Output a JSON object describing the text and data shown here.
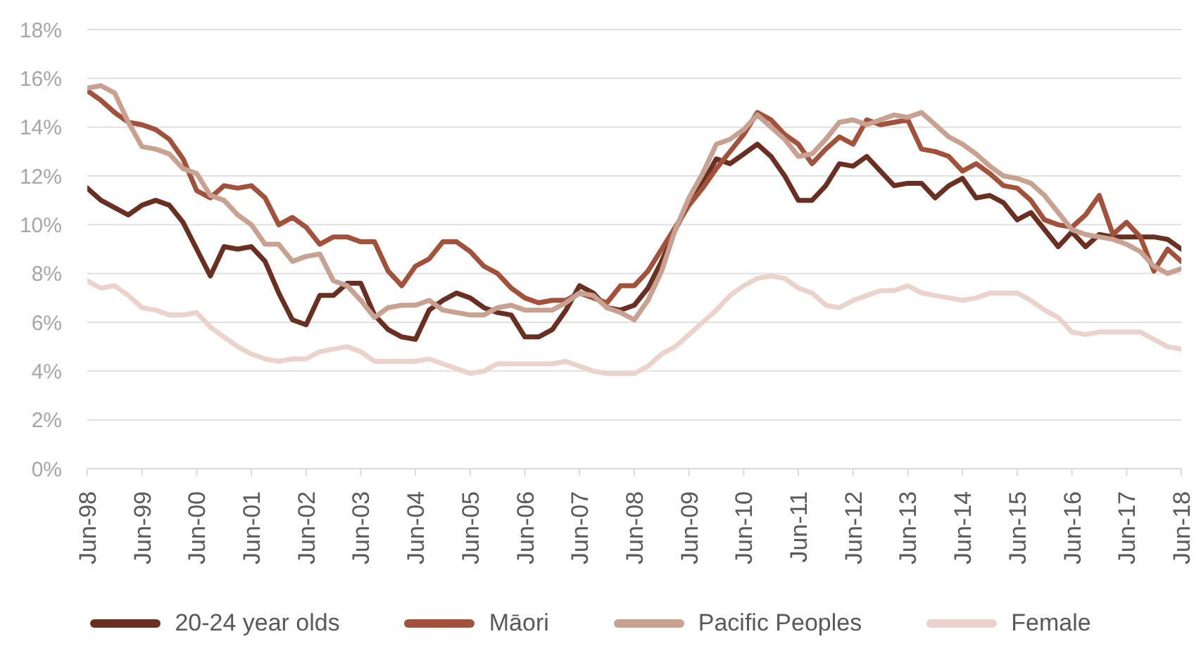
{
  "chart_data": {
    "type": "line",
    "categories": [
      "Jun-98",
      null,
      null,
      null,
      "Jun-99",
      null,
      null,
      null,
      "Jun-00",
      null,
      null,
      null,
      "Jun-01",
      null,
      null,
      null,
      "Jun-02",
      null,
      null,
      null,
      "Jun-03",
      null,
      null,
      null,
      "Jun-04",
      null,
      null,
      null,
      "Jun-05",
      null,
      null,
      null,
      "Jun-06",
      null,
      null,
      null,
      "Jun-07",
      null,
      null,
      null,
      "Jun-08",
      null,
      null,
      null,
      "Jun-09",
      null,
      null,
      null,
      "Jun-10",
      null,
      null,
      null,
      "Jun-11",
      null,
      null,
      null,
      "Jun-12",
      null,
      null,
      null,
      "Jun-13",
      null,
      null,
      null,
      "Jun-14",
      null,
      null,
      null,
      "Jun-15",
      null,
      null,
      null,
      "Jun-16",
      null,
      null,
      null,
      "Jun-17",
      null,
      null,
      null,
      "Jun-18"
    ],
    "series": [
      {
        "name": "20-24 year olds",
        "color": "#6b2f22",
        "values": [
          11.5,
          11.0,
          10.7,
          10.4,
          10.8,
          11.0,
          10.8,
          10.1,
          9.0,
          7.9,
          9.1,
          9.0,
          9.1,
          8.5,
          7.2,
          6.1,
          5.9,
          7.1,
          7.1,
          7.6,
          7.6,
          6.3,
          5.7,
          5.4,
          5.3,
          6.5,
          6.9,
          7.2,
          7.0,
          6.6,
          6.4,
          6.3,
          5.4,
          5.4,
          5.7,
          6.5,
          7.5,
          7.2,
          6.6,
          6.5,
          6.7,
          7.4,
          8.5,
          9.8,
          10.9,
          11.7,
          12.7,
          12.5,
          12.9,
          13.3,
          12.8,
          12.0,
          11.0,
          11.0,
          11.6,
          12.5,
          12.4,
          12.8,
          12.2,
          11.6,
          11.7,
          11.7,
          11.1,
          11.6,
          11.9,
          11.1,
          11.2,
          10.9,
          10.2,
          10.5,
          9.8,
          9.1,
          9.7,
          9.1,
          9.6,
          9.5,
          9.5,
          9.5,
          9.5,
          9.4,
          9.0
        ]
      },
      {
        "name": "Māori",
        "color": "#a3513a",
        "values": [
          15.5,
          15.1,
          14.6,
          14.2,
          14.1,
          13.9,
          13.5,
          12.7,
          11.4,
          11.1,
          11.6,
          11.5,
          11.6,
          11.1,
          10.0,
          10.3,
          9.9,
          9.2,
          9.5,
          9.5,
          9.3,
          9.3,
          8.1,
          7.5,
          8.3,
          8.6,
          9.3,
          9.3,
          8.9,
          8.3,
          8.0,
          7.4,
          7.0,
          6.8,
          6.9,
          6.9,
          7.2,
          7.0,
          6.8,
          7.5,
          7.5,
          8.1,
          9.0,
          9.9,
          10.8,
          11.5,
          12.3,
          13.0,
          13.7,
          14.6,
          14.3,
          13.7,
          13.3,
          12.5,
          13.1,
          13.6,
          13.3,
          14.3,
          14.1,
          14.2,
          14.3,
          13.1,
          13.0,
          12.8,
          12.2,
          12.5,
          12.1,
          11.6,
          11.5,
          11.0,
          10.2,
          10.0,
          9.9,
          10.4,
          11.2,
          9.6,
          10.1,
          9.5,
          8.1,
          9.0,
          8.5
        ]
      },
      {
        "name": "Pacific Peoples",
        "color": "#c8a190",
        "values": [
          15.6,
          15.7,
          15.4,
          14.2,
          13.2,
          13.1,
          12.9,
          12.3,
          12.1,
          11.2,
          11.0,
          10.4,
          10.0,
          9.2,
          9.2,
          8.5,
          8.7,
          8.8,
          7.7,
          7.5,
          6.9,
          6.2,
          6.6,
          6.7,
          6.7,
          6.9,
          6.5,
          6.4,
          6.3,
          6.3,
          6.6,
          6.7,
          6.5,
          6.5,
          6.5,
          6.8,
          7.2,
          7.1,
          6.6,
          6.4,
          6.1,
          6.9,
          8.1,
          9.8,
          11.1,
          12.1,
          13.3,
          13.5,
          13.9,
          14.5,
          14.0,
          13.5,
          12.8,
          12.9,
          13.5,
          14.2,
          14.3,
          14.1,
          14.3,
          14.5,
          14.4,
          14.6,
          14.1,
          13.6,
          13.3,
          12.9,
          12.4,
          12.0,
          11.9,
          11.7,
          11.2,
          10.5,
          9.8,
          9.6,
          9.5,
          9.4,
          9.2,
          8.9,
          8.3,
          8.0,
          8.2
        ]
      },
      {
        "name": "Female",
        "color": "#ebd3cc",
        "values": [
          7.7,
          7.4,
          7.5,
          7.1,
          6.6,
          6.5,
          6.3,
          6.3,
          6.4,
          5.8,
          5.4,
          5.0,
          4.7,
          4.5,
          4.4,
          4.5,
          4.5,
          4.8,
          4.9,
          5.0,
          4.8,
          4.4,
          4.4,
          4.4,
          4.4,
          4.5,
          4.3,
          4.1,
          3.9,
          4.0,
          4.3,
          4.3,
          4.3,
          4.3,
          4.3,
          4.4,
          4.2,
          4.0,
          3.9,
          3.9,
          3.9,
          4.2,
          4.7,
          5.0,
          5.5,
          6.0,
          6.5,
          7.1,
          7.5,
          7.8,
          7.9,
          7.8,
          7.4,
          7.2,
          6.7,
          6.6,
          6.9,
          7.1,
          7.3,
          7.3,
          7.5,
          7.2,
          7.1,
          7.0,
          6.9,
          7.0,
          7.2,
          7.2,
          7.2,
          6.9,
          6.5,
          6.2,
          5.6,
          5.5,
          5.6,
          5.6,
          5.6,
          5.6,
          5.3,
          5.0,
          4.9
        ]
      }
    ],
    "ylim": [
      0,
      18
    ],
    "yticks": [
      {
        "value": 0,
        "label": "0%"
      },
      {
        "value": 2,
        "label": "2%"
      },
      {
        "value": 4,
        "label": "4%"
      },
      {
        "value": 6,
        "label": "6%"
      },
      {
        "value": 8,
        "label": "8%"
      },
      {
        "value": 10,
        "label": "10%"
      },
      {
        "value": 12,
        "label": "12%"
      },
      {
        "value": 14,
        "label": "14%"
      },
      {
        "value": 16,
        "label": "16%"
      },
      {
        "value": 18,
        "label": "18%"
      }
    ],
    "grid": "y",
    "legend": "bottom"
  }
}
